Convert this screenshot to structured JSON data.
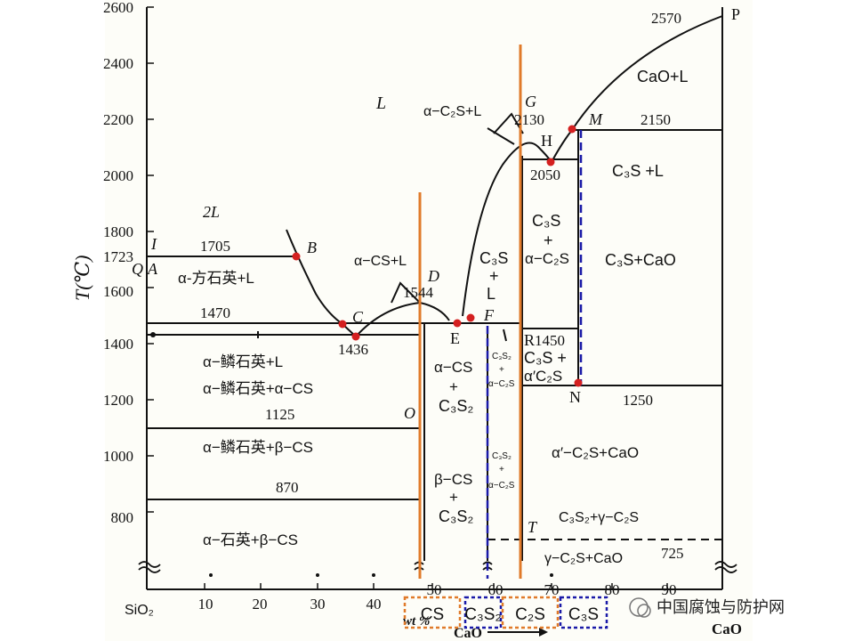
{
  "diagram": {
    "y_axis": {
      "title": "T(℃)",
      "ticks": [
        "2600",
        "2400",
        "2200",
        "2000",
        "1800",
        "1600",
        "1400",
        "1200",
        "1000",
        "800"
      ],
      "mark_1723": "1723"
    },
    "x_axis": {
      "left_label": "SiO₂",
      "right_label": "CaO",
      "ticks": [
        "10",
        "20",
        "30",
        "40",
        "50",
        "60",
        "70",
        "80",
        "90"
      ],
      "unit": "wt %",
      "unit2": "CaO"
    },
    "points": {
      "P": "P",
      "A": "A",
      "B": "B",
      "C": "C",
      "D": "D",
      "E": "E",
      "F": "F",
      "G": "G",
      "H": "H",
      "M": "M",
      "N": "N",
      "O": "O",
      "R": "R",
      "T": "T",
      "Q": "Q",
      "I": "I"
    },
    "temps": {
      "t2570": "2570",
      "t2150": "2150",
      "t2130": "2130",
      "t2050": "2050",
      "t1705": "1705",
      "t1544": "1544",
      "t1470": "1470",
      "t1436": "1436",
      "t1450": "1450",
      "t1250": "1250",
      "t1125": "1125",
      "t870": "870",
      "t725": "725"
    },
    "regions": {
      "L": "L",
      "twoL": "2L",
      "cao_l": "CaO+L",
      "c2s_l": "α−C₂S+L",
      "c3s_l_right": "C₃S +L",
      "cristobalite_l": "α-方石英+L",
      "acs_l": "α−CS+L",
      "c3s_l_mid_1": "C₃S",
      "c3s_l_mid_2": "+",
      "c3s_l_mid_3": "L",
      "c3s_ac2s_1": "C₃S",
      "c3s_ac2s_2": "+",
      "c3s_ac2s_3": "α−C₂S",
      "c3s_cao": "C₃S+CaO",
      "tridymite_l": "α−鳞石英+L",
      "tridymite_acs": "α−鳞石英+α−CS",
      "tridymite_bcs": "α−鳞石英+β−CS",
      "quartz_bcs": "α−石英+β−CS",
      "acs_c3s2_1": "α−CS",
      "acs_c3s2_2": "+",
      "acs_c3s2_3": "C₃S₂",
      "bcs_c3s2_1": "β−CS",
      "bcs_c3s2_2": "+",
      "bcs_c3s2_3": "C₃S₂",
      "small1_1": "C₃S₂",
      "small1_2": "+",
      "small1_3": "α−C₂S",
      "small2_1": "C₃S₂",
      "small2_2": "+",
      "small2_3": "α−C₂S",
      "c3s_block_1": "C₃S +",
      "c3s_block_2": "α′C₂S",
      "a2cs_cao": "α′−C₂S+CaO",
      "c3s2_gc2s": "C₃S₂+γ−C₂S",
      "gc2s_cao": "γ−C₂S+CaO"
    },
    "phase_boxes": [
      "CS",
      "C₃S₂",
      "C₂S",
      "C₃S"
    ],
    "colors": {
      "orange": "#e07a2a",
      "blue": "#1a1aa8",
      "red": "#d42020",
      "line": "#111111"
    }
  },
  "watermark": {
    "text": "中国腐蚀与防护网"
  }
}
